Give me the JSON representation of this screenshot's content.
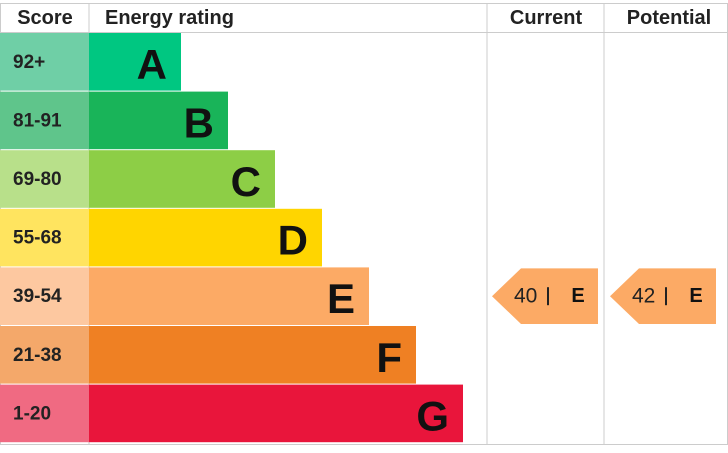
{
  "header": {
    "score": "Score",
    "rating": "Energy rating",
    "current": "Current",
    "potential": "Potential"
  },
  "bands": [
    {
      "score": "92+",
      "letter": "A",
      "color": "#00c781",
      "score_color": "#6fcfa6"
    },
    {
      "score": "81-91",
      "letter": "B",
      "color": "#19b459",
      "score_color": "#5fc58b"
    },
    {
      "score": "69-80",
      "letter": "C",
      "color": "#8dce46",
      "score_color": "#b8e08a"
    },
    {
      "score": "55-68",
      "letter": "D",
      "color": "#ffd500",
      "score_color": "#ffe45f"
    },
    {
      "score": "39-54",
      "letter": "E",
      "color": "#fcaa65",
      "score_color": "#fdc8a0"
    },
    {
      "score": "21-38",
      "letter": "F",
      "color": "#ef8023",
      "score_color": "#f4a86a"
    },
    {
      "score": "1-20",
      "letter": "G",
      "color": "#e9153b",
      "score_color": "#f06a82"
    }
  ],
  "current": {
    "value": 40,
    "rating": "E"
  },
  "potential": {
    "value": 42,
    "rating": "E"
  }
}
